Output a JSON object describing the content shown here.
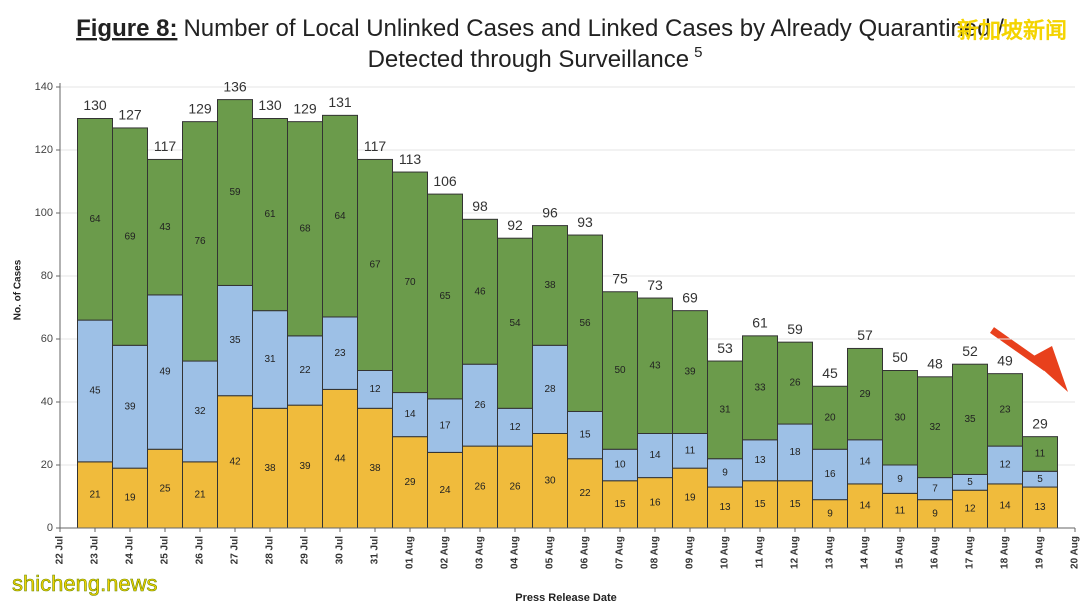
{
  "chart_data": {
    "type": "stacked_bar",
    "title_prefix": "Figure 8:",
    "title": [
      "Number of Local Unlinked Cases and Linked Cases by Already Quarantined /",
      "Detected through Surveillance"
    ],
    "title_superscript": "5",
    "y_label": "No. of Cases",
    "x_label": "Press Release Date",
    "watermarks": [
      "新加坡新闻",
      "shicheng.news"
    ],
    "x": [
      "23 Jul",
      "24 Jul",
      "25 Jul",
      "26 Jul",
      "27 Jul",
      "28 Jul",
      "29 Jul",
      "30 Jul",
      "31 Jul",
      "01 Aug",
      "02 Aug",
      "03 Aug",
      "04 Aug",
      "05 Aug",
      "06 Aug",
      "07 Aug",
      "08 Aug",
      "09 Aug",
      "10 Aug",
      "11 Aug",
      "12 Aug",
      "13 Aug",
      "14 Aug",
      "15 Aug",
      "16 Aug",
      "17 Aug",
      "18 Aug",
      "19 Aug"
    ],
    "xticks": [
      "22 Jul",
      "23 Jul",
      "24 Jul",
      "25 Jul",
      "26 Jul",
      "27 Jul",
      "28 Jul",
      "29 Jul",
      "30 Jul",
      "31 Jul",
      "01 Aug",
      "02 Aug",
      "03 Aug",
      "04 Aug",
      "05 Aug",
      "06 Aug",
      "07 Aug",
      "08 Aug",
      "09 Aug",
      "10 Aug",
      "11 Aug",
      "12 Aug",
      "13 Aug",
      "14 Aug",
      "15 Aug",
      "16 Aug",
      "17 Aug",
      "18 Aug",
      "19 Aug",
      "20 Aug"
    ],
    "series": [
      {
        "color": "#f0bb3c",
        "values": [
          21,
          19,
          25,
          21,
          42,
          38,
          39,
          44,
          38,
          29,
          24,
          26,
          26,
          30,
          22,
          15,
          16,
          19,
          13,
          15,
          15,
          9,
          14,
          11,
          9,
          12,
          14,
          13
        ]
      },
      {
        "color": "#9dc0e6",
        "values": [
          45,
          39,
          49,
          32,
          35,
          31,
          22,
          23,
          12,
          14,
          17,
          26,
          12,
          28,
          15,
          10,
          14,
          11,
          9,
          13,
          18,
          16,
          14,
          9,
          7,
          5,
          12,
          5
        ]
      },
      {
        "color": "#6b9b4b",
        "values": [
          64,
          69,
          43,
          76,
          59,
          61,
          68,
          64,
          67,
          70,
          65,
          46,
          54,
          38,
          56,
          50,
          43,
          39,
          31,
          33,
          26,
          20,
          29,
          30,
          32,
          35,
          23,
          11
        ]
      }
    ],
    "totals": [
      130,
      127,
      117,
      129,
      136,
      130,
      129,
      131,
      117,
      113,
      106,
      98,
      92,
      96,
      93,
      75,
      73,
      69,
      53,
      61,
      59,
      45,
      57,
      50,
      48,
      52,
      49,
      29
    ],
    "ylim": [
      0,
      140
    ],
    "yticks": [
      0,
      20,
      40,
      60,
      80,
      100,
      120,
      140
    ],
    "grid": true
  }
}
